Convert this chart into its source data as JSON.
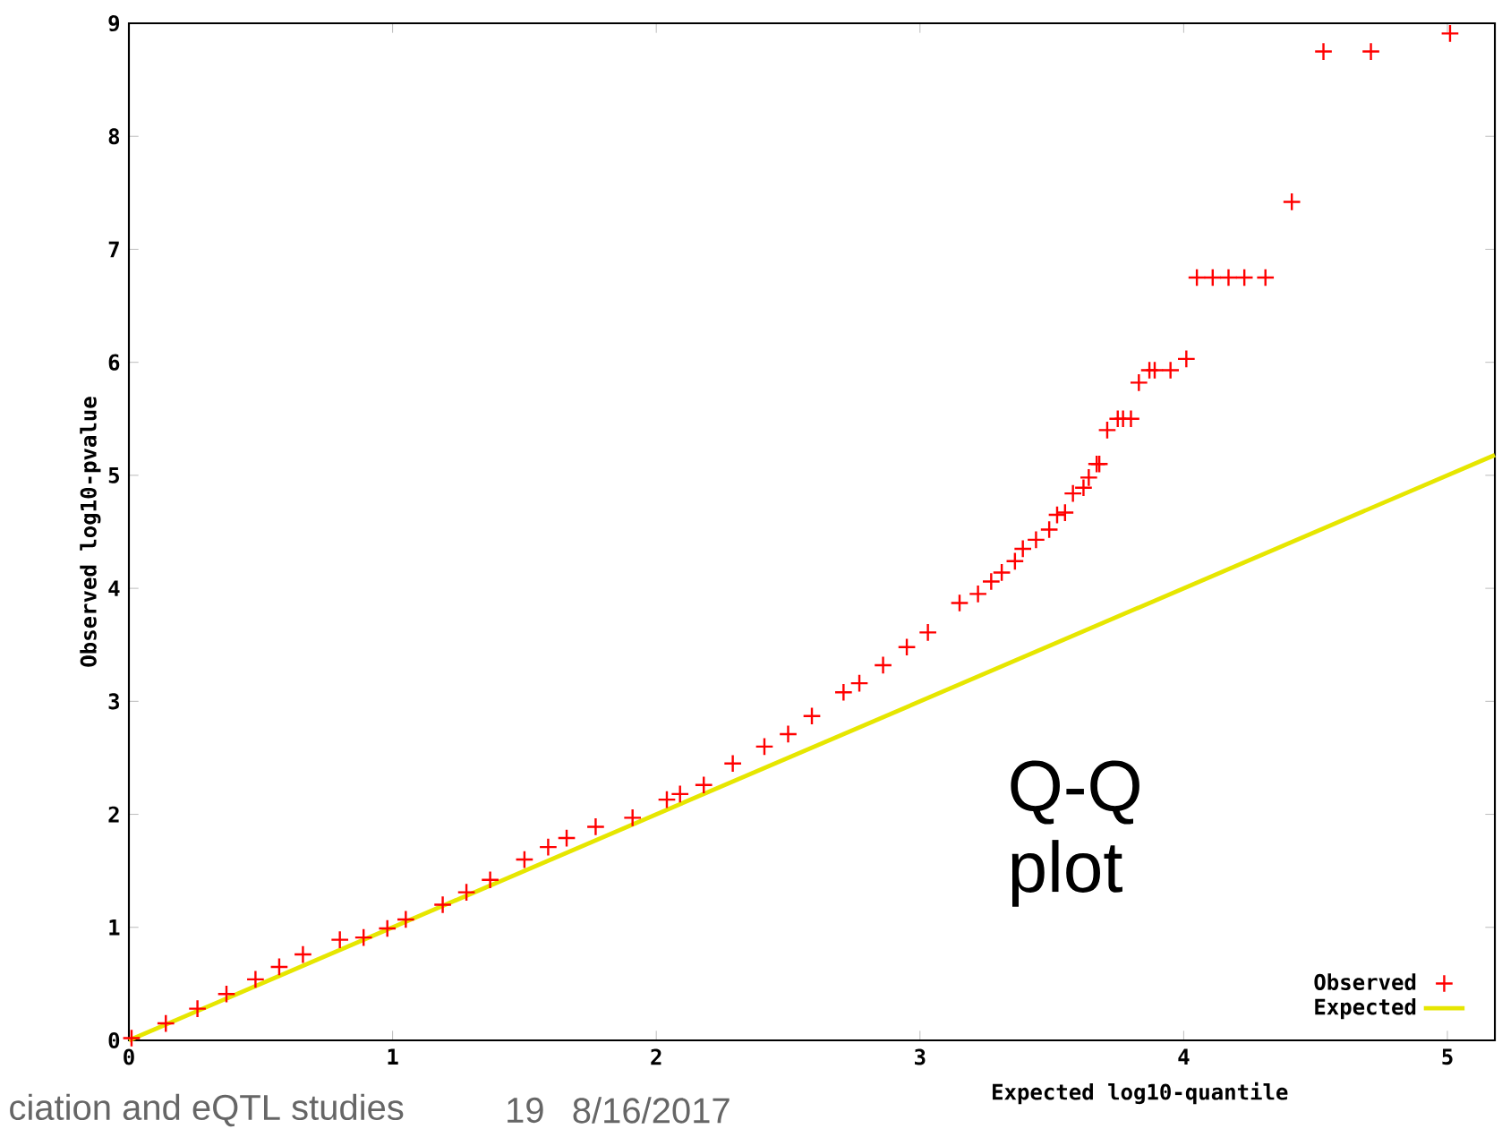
{
  "chart_data": {
    "type": "scatter",
    "xlabel": "Expected log10-quantile",
    "ylabel": "Observed log10-pvalue",
    "annotations": [
      "Q-Q plot",
      "ciation and eQTL studies",
      "19",
      "8/16/2017"
    ],
    "xlim": [
      0,
      5.18
    ],
    "ylim": [
      0,
      9
    ],
    "xticks": [
      0,
      1,
      2,
      3,
      4,
      5
    ],
    "yticks": [
      0,
      1,
      2,
      3,
      4,
      5,
      6,
      7,
      8,
      9
    ],
    "legend": "bottom right",
    "series": [
      {
        "name": "Observed",
        "marker": "cross",
        "color": "#ff0000",
        "x": [
          0.01,
          0.14,
          0.26,
          0.37,
          0.48,
          0.57,
          0.66,
          0.8,
          0.89,
          0.98,
          1.05,
          1.19,
          1.28,
          1.37,
          1.5,
          1.59,
          1.66,
          1.77,
          1.91,
          2.04,
          2.09,
          2.18,
          2.29,
          2.41,
          2.5,
          2.59,
          2.71,
          2.77,
          2.86,
          2.95,
          3.03,
          3.15,
          3.22,
          3.27,
          3.31,
          3.36,
          3.39,
          3.44,
          3.49,
          3.52,
          3.55,
          3.58,
          3.62,
          3.64,
          3.67,
          3.68,
          3.71,
          3.75,
          3.77,
          3.8,
          3.83,
          3.87,
          3.89,
          3.95,
          4.01,
          4.05,
          4.11,
          4.17,
          4.23,
          4.31,
          4.41,
          4.53,
          4.71,
          5.01
        ],
        "values": [
          0.02,
          0.15,
          0.28,
          0.41,
          0.54,
          0.65,
          0.76,
          0.89,
          0.91,
          0.99,
          1.07,
          1.2,
          1.31,
          1.42,
          1.6,
          1.71,
          1.79,
          1.89,
          1.97,
          2.13,
          2.18,
          2.26,
          2.45,
          2.6,
          2.71,
          2.87,
          3.08,
          3.16,
          3.32,
          3.48,
          3.61,
          3.87,
          3.95,
          4.06,
          4.14,
          4.24,
          4.35,
          4.43,
          4.52,
          4.65,
          4.67,
          4.84,
          4.89,
          4.98,
          5.1,
          5.1,
          5.4,
          5.5,
          5.5,
          5.5,
          5.82,
          5.93,
          5.93,
          5.93,
          6.03,
          6.75,
          6.75,
          6.75,
          6.75,
          6.75,
          7.42,
          8.75,
          8.75,
          8.91
        ]
      },
      {
        "name": "Expected",
        "type": "line",
        "line_style": "solid",
        "color": "#e6e600",
        "x": [
          0,
          5.18
        ],
        "values": [
          0,
          5.18
        ]
      }
    ]
  }
}
